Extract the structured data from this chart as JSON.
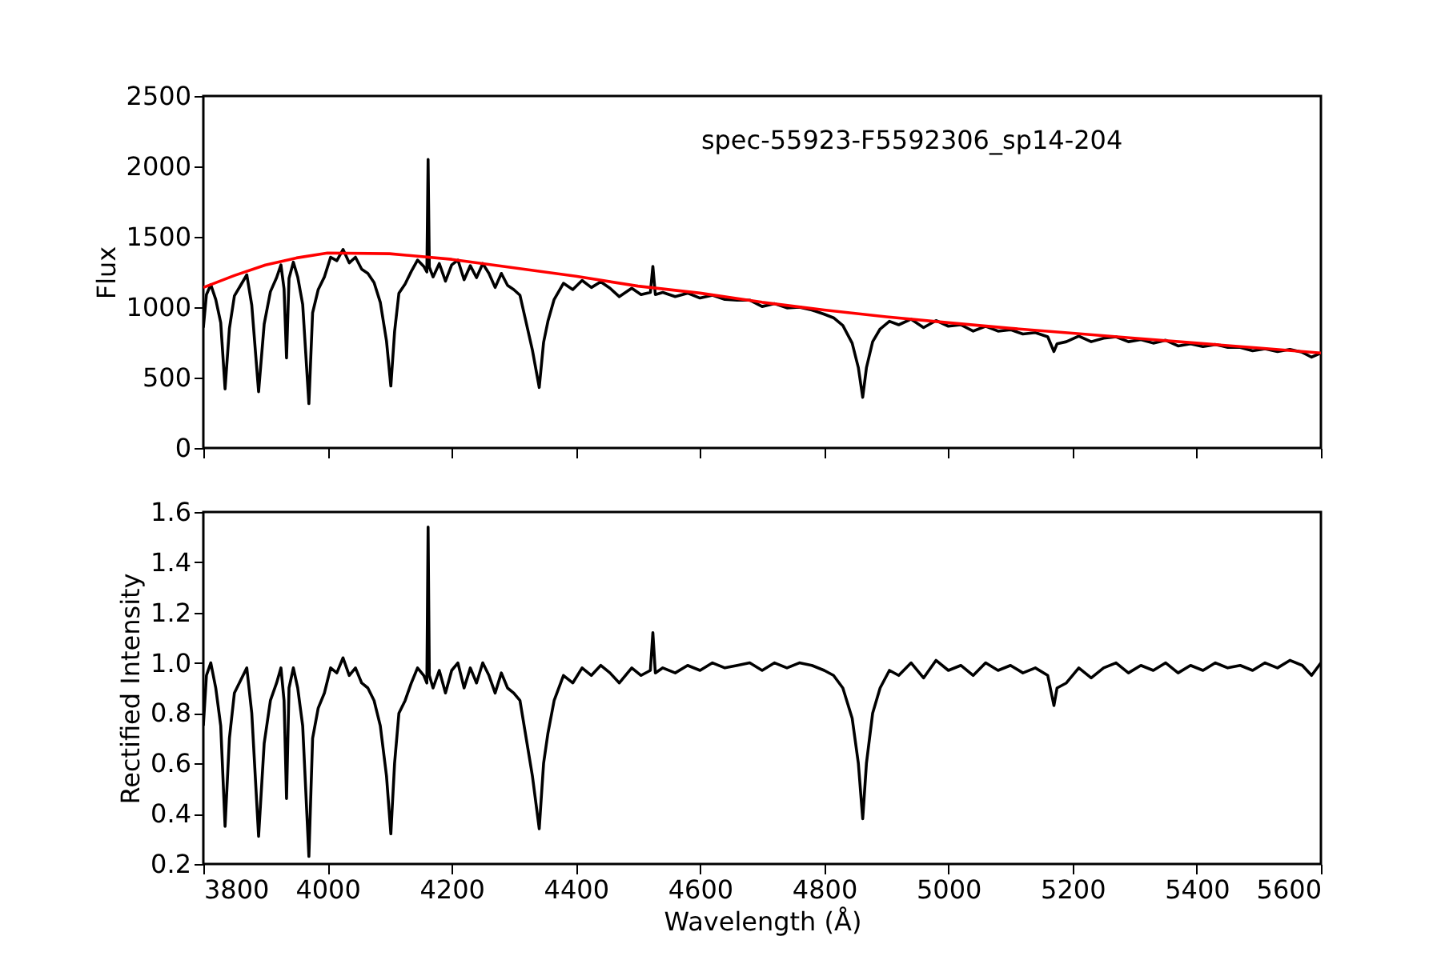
{
  "chart_data": [
    {
      "type": "line",
      "title": "spec-55923-F5592306_sp14-204",
      "ylabel": "Flux",
      "xlim": [
        3800,
        5600
      ],
      "xticks": [
        3800,
        4000,
        4200,
        4400,
        4600,
        4800,
        5000,
        5200,
        5400,
        5600
      ],
      "ylim": [
        0,
        2500
      ],
      "yticks": [
        0,
        500,
        1000,
        1500,
        2000,
        2500
      ],
      "grid": false,
      "tick_labels": "y",
      "series": [
        {
          "color": "#000000",
          "x": [
            3800,
            3805,
            3812,
            3820,
            3828,
            3835,
            3842,
            3850,
            3860,
            3870,
            3878,
            3889,
            3898,
            3908,
            3918,
            3925,
            3930,
            3934,
            3938,
            3945,
            3952,
            3960,
            3970,
            3976,
            3985,
            3995,
            4005,
            4015,
            4025,
            4035,
            4045,
            4055,
            4065,
            4075,
            4085,
            4095,
            4102,
            4108,
            4115,
            4125,
            4135,
            4145,
            4155,
            4160,
            4162,
            4164,
            4170,
            4180,
            4190,
            4200,
            4210,
            4220,
            4230,
            4240,
            4250,
            4260,
            4270,
            4280,
            4290,
            4300,
            4310,
            4320,
            4330,
            4341,
            4348,
            4355,
            4365,
            4380,
            4395,
            4410,
            4425,
            4440,
            4455,
            4470,
            4490,
            4505,
            4520,
            4524,
            4528,
            4540,
            4560,
            4580,
            4600,
            4620,
            4640,
            4660,
            4680,
            4700,
            4720,
            4740,
            4760,
            4780,
            4800,
            4815,
            4830,
            4845,
            4855,
            4862,
            4868,
            4878,
            4890,
            4905,
            4920,
            4940,
            4960,
            4980,
            5000,
            5020,
            5040,
            5060,
            5080,
            5100,
            5120,
            5140,
            5160,
            5170,
            5175,
            5190,
            5210,
            5230,
            5250,
            5270,
            5290,
            5310,
            5330,
            5350,
            5370,
            5390,
            5410,
            5430,
            5450,
            5470,
            5490,
            5510,
            5530,
            5550,
            5570,
            5585,
            5600
          ],
          "values": [
            855,
            1090,
            1160,
            1055,
            890,
            420,
            850,
            1080,
            1155,
            1230,
            1015,
            400,
            880,
            1110,
            1210,
            1300,
            1130,
            640,
            1205,
            1320,
            1215,
            1020,
            315,
            960,
            1125,
            1215,
            1355,
            1330,
            1410,
            1315,
            1355,
            1270,
            1240,
            1175,
            1035,
            760,
            440,
            825,
            1100,
            1165,
            1255,
            1335,
            1290,
            1250,
            2050,
            1285,
            1215,
            1310,
            1185,
            1300,
            1335,
            1195,
            1295,
            1210,
            1310,
            1240,
            1140,
            1240,
            1155,
            1125,
            1085,
            890,
            695,
            430,
            750,
            900,
            1055,
            1170,
            1125,
            1190,
            1140,
            1180,
            1135,
            1075,
            1135,
            1090,
            1105,
            1290,
            1090,
            1105,
            1075,
            1100,
            1065,
            1085,
            1055,
            1050,
            1050,
            1005,
            1025,
            995,
            1000,
            980,
            950,
            925,
            870,
            745,
            570,
            360,
            570,
            755,
            845,
            900,
            875,
            915,
            855,
            905,
            865,
            875,
            830,
            865,
            830,
            840,
            810,
            820,
            790,
            685,
            740,
            755,
            795,
            755,
            780,
            790,
            755,
            770,
            745,
            765,
            725,
            740,
            720,
            735,
            715,
            715,
            690,
            705,
            685,
            700,
            680,
            645,
            675
          ]
        },
        {
          "color": "#ff0000",
          "x": [
            3800,
            3850,
            3900,
            3950,
            4000,
            4100,
            4200,
            4300,
            4400,
            4500,
            4600,
            4700,
            4800,
            4900,
            5000,
            5100,
            5200,
            5300,
            5400,
            5500,
            5600
          ],
          "values": [
            1140,
            1225,
            1300,
            1350,
            1385,
            1380,
            1340,
            1280,
            1220,
            1150,
            1100,
            1035,
            980,
            932,
            890,
            850,
            815,
            780,
            745,
            710,
            675
          ]
        }
      ]
    },
    {
      "type": "line",
      "xlabel": "Wavelength (Å)",
      "ylabel": "Rectified Intensity",
      "xlim": [
        3800,
        5600
      ],
      "xticks": [
        3800,
        4000,
        4200,
        4400,
        4600,
        4800,
        5000,
        5200,
        5400,
        5600
      ],
      "ylim": [
        0.2,
        1.6
      ],
      "yticks": [
        0.2,
        0.4,
        0.6,
        0.8,
        {
          "value": 1,
          "label": "1.0"
        },
        1.2,
        1.4,
        1.6
      ],
      "grid": false,
      "series": [
        {
          "color": "#000000",
          "x": [
            3800,
            3805,
            3812,
            3820,
            3828,
            3835,
            3842,
            3850,
            3860,
            3870,
            3878,
            3889,
            3898,
            3908,
            3918,
            3925,
            3930,
            3934,
            3938,
            3945,
            3952,
            3960,
            3970,
            3976,
            3985,
            3995,
            4005,
            4015,
            4025,
            4035,
            4045,
            4055,
            4065,
            4075,
            4085,
            4095,
            4102,
            4108,
            4115,
            4125,
            4135,
            4145,
            4155,
            4160,
            4162,
            4164,
            4170,
            4180,
            4190,
            4200,
            4210,
            4220,
            4230,
            4240,
            4250,
            4260,
            4270,
            4280,
            4290,
            4300,
            4310,
            4320,
            4330,
            4341,
            4348,
            4355,
            4365,
            4380,
            4395,
            4410,
            4425,
            4440,
            4455,
            4470,
            4490,
            4505,
            4520,
            4524,
            4528,
            4540,
            4560,
            4580,
            4600,
            4620,
            4640,
            4660,
            4680,
            4700,
            4720,
            4740,
            4760,
            4780,
            4800,
            4815,
            4830,
            4845,
            4855,
            4862,
            4868,
            4878,
            4890,
            4905,
            4920,
            4940,
            4960,
            4980,
            5000,
            5020,
            5040,
            5060,
            5080,
            5100,
            5120,
            5140,
            5160,
            5170,
            5175,
            5190,
            5210,
            5230,
            5250,
            5270,
            5290,
            5310,
            5330,
            5350,
            5370,
            5390,
            5410,
            5430,
            5450,
            5470,
            5490,
            5510,
            5530,
            5550,
            5570,
            5585,
            5600
          ],
          "values": [
            0.75,
            0.95,
            1.0,
            0.9,
            0.75,
            0.35,
            0.7,
            0.88,
            0.93,
            0.98,
            0.8,
            0.31,
            0.68,
            0.85,
            0.92,
            0.98,
            0.85,
            0.46,
            0.9,
            0.98,
            0.9,
            0.75,
            0.23,
            0.7,
            0.82,
            0.88,
            0.98,
            0.96,
            1.02,
            0.95,
            0.98,
            0.92,
            0.9,
            0.85,
            0.75,
            0.55,
            0.32,
            0.6,
            0.8,
            0.85,
            0.92,
            0.98,
            0.95,
            0.92,
            1.54,
            0.95,
            0.9,
            0.97,
            0.88,
            0.97,
            1.0,
            0.9,
            0.98,
            0.92,
            1.0,
            0.95,
            0.88,
            0.96,
            0.9,
            0.88,
            0.85,
            0.7,
            0.55,
            0.34,
            0.6,
            0.72,
            0.85,
            0.95,
            0.92,
            0.98,
            0.95,
            0.99,
            0.96,
            0.92,
            0.98,
            0.95,
            0.97,
            1.12,
            0.96,
            0.98,
            0.96,
            0.99,
            0.97,
            1.0,
            0.98,
            0.99,
            1.0,
            0.97,
            1.0,
            0.98,
            1.0,
            0.99,
            0.97,
            0.95,
            0.9,
            0.78,
            0.6,
            0.38,
            0.6,
            0.8,
            0.9,
            0.97,
            0.95,
            1.0,
            0.94,
            1.01,
            0.97,
            0.99,
            0.95,
            1.0,
            0.97,
            0.99,
            0.96,
            0.98,
            0.95,
            0.83,
            0.9,
            0.92,
            0.98,
            0.94,
            0.98,
            1.0,
            0.96,
            0.99,
            0.97,
            1.0,
            0.96,
            0.99,
            0.97,
            1.0,
            0.98,
            0.99,
            0.97,
            1.0,
            0.98,
            1.01,
            0.99,
            0.95,
            1.0
          ]
        }
      ]
    }
  ]
}
